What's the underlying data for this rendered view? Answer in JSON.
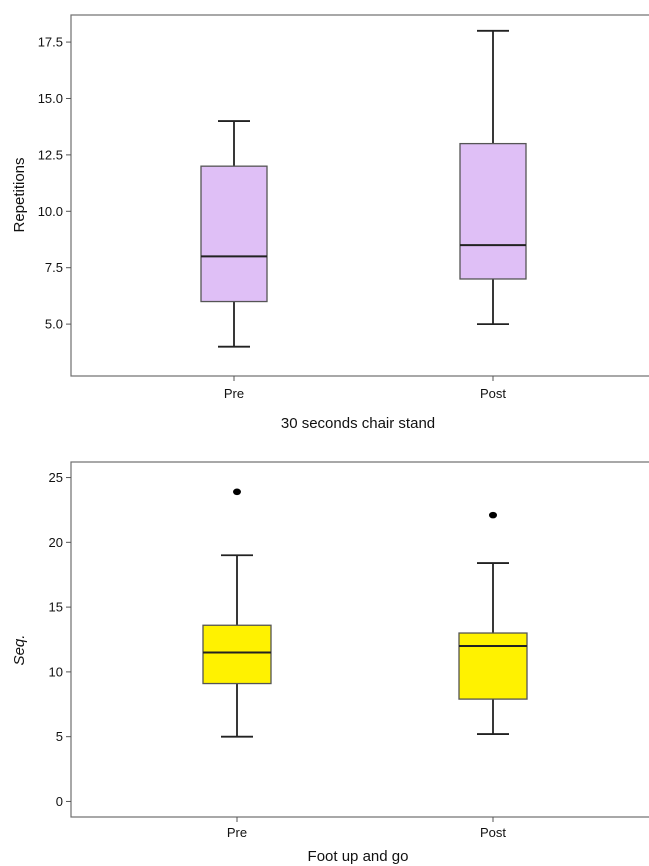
{
  "chart_data": [
    {
      "type": "boxplot",
      "xlabel": "30 seconds chair stand",
      "ylabel": "Repetitions",
      "ylim": [
        2.7,
        18.7
      ],
      "yticks": [
        "5.0",
        "7.5",
        "10.0",
        "12.5",
        "15.0",
        "17.5"
      ],
      "ytick_values": [
        5.0,
        7.5,
        10.0,
        12.5,
        15.0,
        17.5
      ],
      "categories": [
        "Pre",
        "Post"
      ],
      "fill_color": "#dfbff6",
      "ylabel_italic": false,
      "boxes": [
        {
          "category": "Pre",
          "min": 4.0,
          "q1": 6.0,
          "median": 8.0,
          "q3": 12.0,
          "max": 14.0,
          "outliers": []
        },
        {
          "category": "Post",
          "min": 5.0,
          "q1": 7.0,
          "median": 8.5,
          "q3": 13.0,
          "max": 18.0,
          "outliers": []
        }
      ]
    },
    {
      "type": "boxplot",
      "xlabel": "Foot up and go",
      "ylabel": "Seq.",
      "ylim": [
        -1.2,
        26.2
      ],
      "yticks": [
        "0",
        "5",
        "10",
        "15",
        "20",
        "25"
      ],
      "ytick_values": [
        0,
        5,
        10,
        15,
        20,
        25
      ],
      "categories": [
        "Pre",
        "Post"
      ],
      "fill_color": "#fff200",
      "ylabel_italic": true,
      "boxes": [
        {
          "category": "Pre",
          "min": 5.0,
          "q1": 9.1,
          "median": 11.5,
          "q3": 13.6,
          "max": 19.0,
          "outliers": [
            23.9
          ]
        },
        {
          "category": "Post",
          "min": 5.2,
          "q1": 7.9,
          "median": 12.0,
          "q3": 13.0,
          "max": 18.4,
          "outliers": [
            22.1
          ]
        }
      ]
    }
  ]
}
